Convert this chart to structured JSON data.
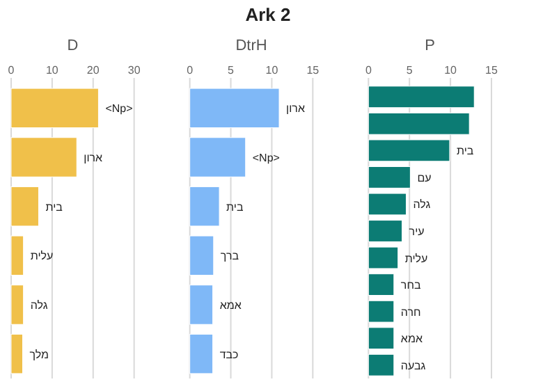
{
  "chart_data": [
    {
      "type": "bar",
      "subtitle": "D",
      "orientation": "horizontal",
      "categories": [
        "<Np>",
        "ארון",
        "בית",
        "עלית",
        "גלה",
        "מלך"
      ],
      "series": [
        {
          "color": "#f0c04a",
          "values": [
            21.3,
            16,
            6.7,
            3,
            3,
            2.8
          ]
        }
      ],
      "xlim": [
        0,
        30
      ],
      "xticks": [
        0,
        10,
        20,
        30
      ],
      "grid": "x"
    },
    {
      "type": "bar",
      "title": "Ark 2",
      "subtitle": "DtrH",
      "orientation": "horizontal",
      "categories": [
        "ארון",
        "<Np>",
        "בית",
        "ברך",
        "אמא",
        "כבד"
      ],
      "series": [
        {
          "color": "#7fb8f7",
          "values": [
            10.9,
            6.8,
            3.6,
            2.9,
            2.8,
            2.8
          ]
        }
      ],
      "xlim": [
        0,
        15
      ],
      "xticks": [
        0,
        5,
        10,
        15
      ],
      "grid": "x"
    },
    {
      "type": "bar",
      "subtitle": "P",
      "orientation": "horizontal",
      "categories": [
        null,
        null,
        "בית",
        "עם",
        "גלה",
        "עיר",
        "עלית",
        "בחר",
        "חרה",
        "אמא",
        "גבעה"
      ],
      "series": [
        {
          "color": "#0c7c74",
          "values": [
            12.9,
            12.3,
            9.9,
            5.1,
            4.6,
            4.1,
            3.6,
            3.1,
            3.1,
            3.1,
            3.1
          ]
        }
      ],
      "xlim": [
        0,
        15
      ],
      "xticks": [
        0,
        5,
        10,
        15
      ],
      "grid": "x"
    }
  ]
}
